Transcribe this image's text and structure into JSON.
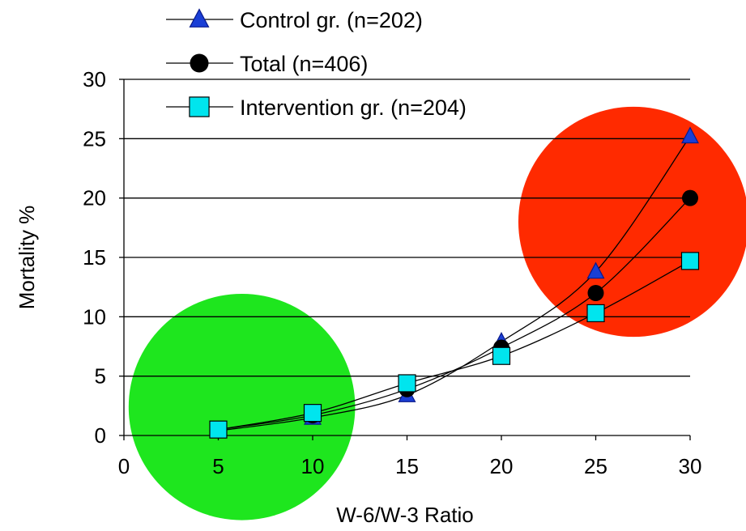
{
  "chart_data": {
    "type": "line",
    "title": "",
    "xlabel": "W-6/W-3 Ratio",
    "ylabel": "Mortality %",
    "xlim": [
      0,
      30
    ],
    "ylim": [
      0,
      30
    ],
    "x_ticks": [
      "0",
      "5",
      "10",
      "15",
      "20",
      "25",
      "30"
    ],
    "y_ticks": [
      "0",
      "5",
      "10",
      "15",
      "20",
      "25",
      "30"
    ],
    "grid": "horizontal",
    "legend_position": "top",
    "series": [
      {
        "name": "Control gr. (n=202)",
        "marker": "triangle",
        "color": "#1a3fd6",
        "x": [
          5,
          10,
          15,
          20,
          25,
          30
        ],
        "values": [
          0.4,
          1.5,
          3.4,
          7.9,
          13.8,
          25.2
        ]
      },
      {
        "name": "Total (n=406)",
        "marker": "circle",
        "color": "#000000",
        "x": [
          5,
          10,
          15,
          20,
          25,
          30
        ],
        "values": [
          0.5,
          1.7,
          3.9,
          7.4,
          12.0,
          20.0
        ]
      },
      {
        "name": "Intervention gr. (n=204)",
        "marker": "square",
        "color": "#00e5ee",
        "x": [
          5,
          10,
          15,
          20,
          25,
          30
        ],
        "values": [
          0.5,
          1.9,
          4.4,
          6.7,
          10.3,
          14.7
        ]
      }
    ],
    "highlights": [
      {
        "name": "low-ratio-zone",
        "color": "#1ee61e",
        "cx": 6.25,
        "cy": 2.4,
        "r": 6.0
      },
      {
        "name": "high-ratio-zone",
        "color": "#ff2a00",
        "cx": 27.0,
        "cy": 18.0,
        "r": 6.1
      }
    ]
  }
}
